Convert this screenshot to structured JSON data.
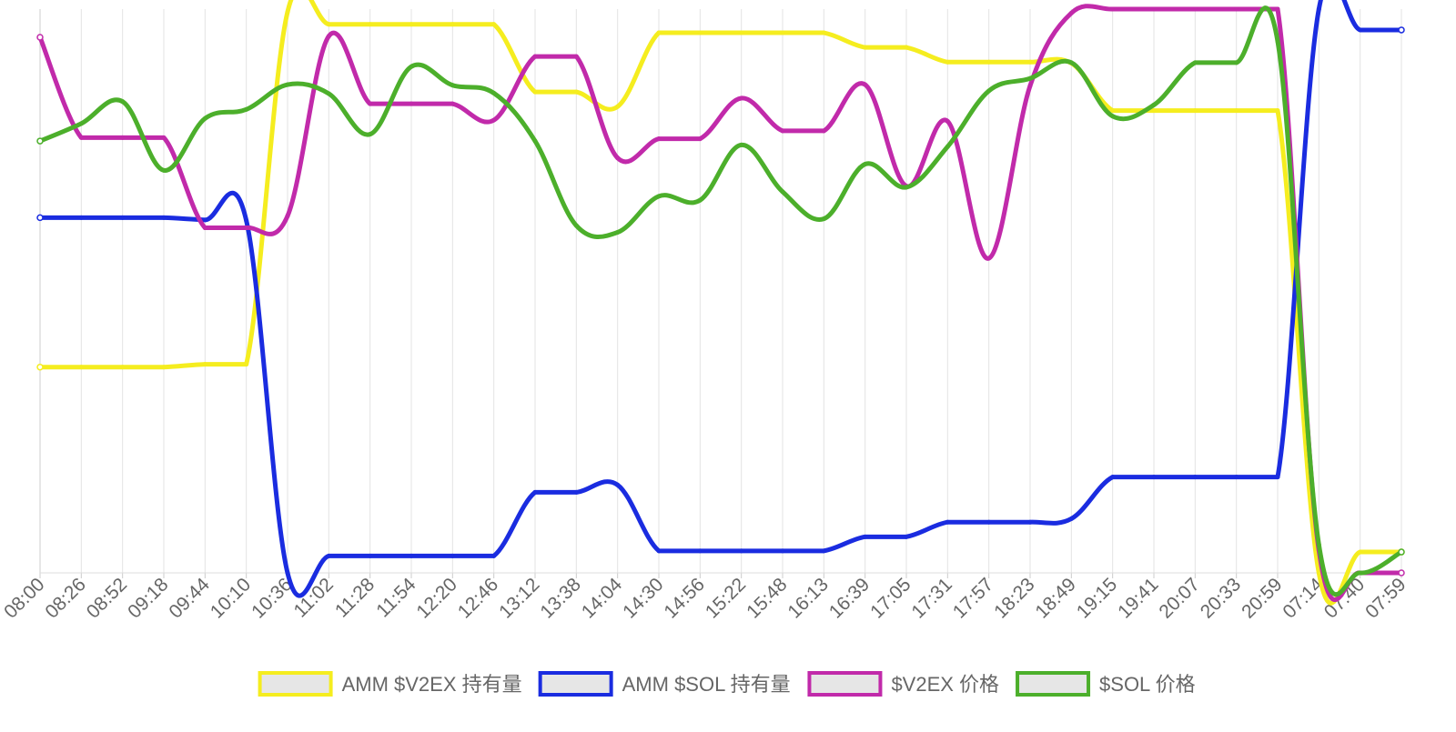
{
  "chart_data": {
    "type": "line",
    "title": "",
    "xlabel": "",
    "ylabel": "",
    "grid": true,
    "legend_position": "bottom",
    "y_axis_labels_visible": false,
    "y_normalized_note": "no y-axis printed; each series drawn on its own scale, values are relative 0-100",
    "ylim": [
      0,
      100
    ],
    "x": [
      "08:00",
      "08:26",
      "08:52",
      "09:18",
      "09:44",
      "10:10",
      "10:36",
      "11:02",
      "11:28",
      "11:54",
      "12:20",
      "12:46",
      "13:12",
      "13:38",
      "14:04",
      "14:30",
      "14:56",
      "15:22",
      "15:48",
      "16:13",
      "16:39",
      "17:05",
      "17:31",
      "17:57",
      "18:23",
      "18:49",
      "19:15",
      "19:41",
      "20:07",
      "20:33",
      "20:59",
      "07:14",
      "07:40",
      "07:59"
    ],
    "series": [
      {
        "name": "AMM $V2EX 持有量",
        "color": "#f5ed1f",
        "values": [
          36.5,
          36.5,
          36.5,
          36.5,
          37.0,
          37.0,
          99.5,
          97.3,
          97.3,
          97.3,
          97.3,
          97.3,
          85.3,
          85.3,
          82.7,
          95.8,
          95.8,
          95.8,
          95.8,
          95.8,
          93.2,
          93.2,
          90.6,
          90.6,
          90.6,
          90.4,
          82.0,
          82.0,
          82.0,
          82.0,
          82.0,
          0.0,
          3.7,
          3.7
        ]
      },
      {
        "name": "AMM $SOL 持有量",
        "color": "#1a2ce0",
        "values": [
          63.0,
          63.0,
          63.0,
          63.0,
          62.6,
          62.5,
          0.0,
          3.0,
          3.0,
          3.0,
          3.0,
          3.0,
          14.3,
          14.3,
          15.6,
          3.9,
          3.9,
          3.9,
          3.9,
          3.9,
          6.4,
          6.4,
          9.0,
          9.0,
          9.0,
          9.6,
          17.0,
          17.0,
          17.0,
          17.0,
          17.0,
          100.0,
          96.3,
          96.3
        ]
      },
      {
        "name": "$V2EX 价格",
        "color": "#c12aaa",
        "values": [
          95.0,
          77.2,
          77.2,
          77.2,
          61.2,
          61.2,
          63.3,
          95.2,
          83.2,
          83.2,
          83.2,
          80.3,
          91.6,
          91.6,
          73.6,
          77.0,
          77.0,
          84.2,
          78.4,
          78.4,
          86.6,
          68.6,
          80.1,
          55.8,
          86.4,
          99.3,
          100.0,
          100.0,
          100.0,
          100.0,
          100.0,
          4.0,
          0.0,
          0.0
        ]
      },
      {
        "name": "$SOL 价格",
        "color": "#4caf2b",
        "values": [
          76.6,
          79.7,
          83.6,
          71.4,
          80.6,
          82.2,
          86.6,
          85.0,
          77.8,
          89.8,
          86.5,
          85.1,
          76.6,
          61.6,
          60.4,
          66.8,
          66.1,
          75.9,
          67.6,
          62.8,
          72.5,
          68.4,
          75.6,
          85.5,
          87.7,
          90.5,
          81.0,
          83.0,
          90.5,
          90.5,
          94.3,
          5.0,
          0.0,
          3.7
        ]
      }
    ]
  }
}
